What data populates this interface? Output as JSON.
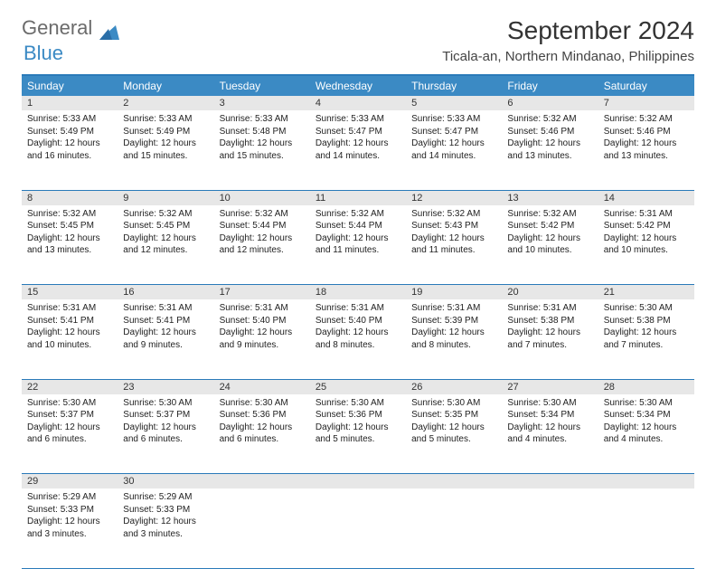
{
  "brand": {
    "part1": "General",
    "part2": "Blue"
  },
  "title": "September 2024",
  "location": "Ticala-an, Northern Mindanao, Philippines",
  "theme": {
    "header_bg": "#3b8ac4",
    "header_text": "#ffffff",
    "border_color": "#2a7ab9",
    "daynum_bg": "#e7e7e7",
    "body_text": "#222222",
    "page_bg": "#ffffff"
  },
  "day_headers": [
    "Sunday",
    "Monday",
    "Tuesday",
    "Wednesday",
    "Thursday",
    "Friday",
    "Saturday"
  ],
  "weeks": [
    {
      "nums": [
        "1",
        "2",
        "3",
        "4",
        "5",
        "6",
        "7"
      ],
      "cells": [
        {
          "sunrise": "Sunrise: 5:33 AM",
          "sunset": "Sunset: 5:49 PM",
          "daylight": "Daylight: 12 hours and 16 minutes."
        },
        {
          "sunrise": "Sunrise: 5:33 AM",
          "sunset": "Sunset: 5:49 PM",
          "daylight": "Daylight: 12 hours and 15 minutes."
        },
        {
          "sunrise": "Sunrise: 5:33 AM",
          "sunset": "Sunset: 5:48 PM",
          "daylight": "Daylight: 12 hours and 15 minutes."
        },
        {
          "sunrise": "Sunrise: 5:33 AM",
          "sunset": "Sunset: 5:47 PM",
          "daylight": "Daylight: 12 hours and 14 minutes."
        },
        {
          "sunrise": "Sunrise: 5:33 AM",
          "sunset": "Sunset: 5:47 PM",
          "daylight": "Daylight: 12 hours and 14 minutes."
        },
        {
          "sunrise": "Sunrise: 5:32 AM",
          "sunset": "Sunset: 5:46 PM",
          "daylight": "Daylight: 12 hours and 13 minutes."
        },
        {
          "sunrise": "Sunrise: 5:32 AM",
          "sunset": "Sunset: 5:46 PM",
          "daylight": "Daylight: 12 hours and 13 minutes."
        }
      ]
    },
    {
      "nums": [
        "8",
        "9",
        "10",
        "11",
        "12",
        "13",
        "14"
      ],
      "cells": [
        {
          "sunrise": "Sunrise: 5:32 AM",
          "sunset": "Sunset: 5:45 PM",
          "daylight": "Daylight: 12 hours and 13 minutes."
        },
        {
          "sunrise": "Sunrise: 5:32 AM",
          "sunset": "Sunset: 5:45 PM",
          "daylight": "Daylight: 12 hours and 12 minutes."
        },
        {
          "sunrise": "Sunrise: 5:32 AM",
          "sunset": "Sunset: 5:44 PM",
          "daylight": "Daylight: 12 hours and 12 minutes."
        },
        {
          "sunrise": "Sunrise: 5:32 AM",
          "sunset": "Sunset: 5:44 PM",
          "daylight": "Daylight: 12 hours and 11 minutes."
        },
        {
          "sunrise": "Sunrise: 5:32 AM",
          "sunset": "Sunset: 5:43 PM",
          "daylight": "Daylight: 12 hours and 11 minutes."
        },
        {
          "sunrise": "Sunrise: 5:32 AM",
          "sunset": "Sunset: 5:42 PM",
          "daylight": "Daylight: 12 hours and 10 minutes."
        },
        {
          "sunrise": "Sunrise: 5:31 AM",
          "sunset": "Sunset: 5:42 PM",
          "daylight": "Daylight: 12 hours and 10 minutes."
        }
      ]
    },
    {
      "nums": [
        "15",
        "16",
        "17",
        "18",
        "19",
        "20",
        "21"
      ],
      "cells": [
        {
          "sunrise": "Sunrise: 5:31 AM",
          "sunset": "Sunset: 5:41 PM",
          "daylight": "Daylight: 12 hours and 10 minutes."
        },
        {
          "sunrise": "Sunrise: 5:31 AM",
          "sunset": "Sunset: 5:41 PM",
          "daylight": "Daylight: 12 hours and 9 minutes."
        },
        {
          "sunrise": "Sunrise: 5:31 AM",
          "sunset": "Sunset: 5:40 PM",
          "daylight": "Daylight: 12 hours and 9 minutes."
        },
        {
          "sunrise": "Sunrise: 5:31 AM",
          "sunset": "Sunset: 5:40 PM",
          "daylight": "Daylight: 12 hours and 8 minutes."
        },
        {
          "sunrise": "Sunrise: 5:31 AM",
          "sunset": "Sunset: 5:39 PM",
          "daylight": "Daylight: 12 hours and 8 minutes."
        },
        {
          "sunrise": "Sunrise: 5:31 AM",
          "sunset": "Sunset: 5:38 PM",
          "daylight": "Daylight: 12 hours and 7 minutes."
        },
        {
          "sunrise": "Sunrise: 5:30 AM",
          "sunset": "Sunset: 5:38 PM",
          "daylight": "Daylight: 12 hours and 7 minutes."
        }
      ]
    },
    {
      "nums": [
        "22",
        "23",
        "24",
        "25",
        "26",
        "27",
        "28"
      ],
      "cells": [
        {
          "sunrise": "Sunrise: 5:30 AM",
          "sunset": "Sunset: 5:37 PM",
          "daylight": "Daylight: 12 hours and 6 minutes."
        },
        {
          "sunrise": "Sunrise: 5:30 AM",
          "sunset": "Sunset: 5:37 PM",
          "daylight": "Daylight: 12 hours and 6 minutes."
        },
        {
          "sunrise": "Sunrise: 5:30 AM",
          "sunset": "Sunset: 5:36 PM",
          "daylight": "Daylight: 12 hours and 6 minutes."
        },
        {
          "sunrise": "Sunrise: 5:30 AM",
          "sunset": "Sunset: 5:36 PM",
          "daylight": "Daylight: 12 hours and 5 minutes."
        },
        {
          "sunrise": "Sunrise: 5:30 AM",
          "sunset": "Sunset: 5:35 PM",
          "daylight": "Daylight: 12 hours and 5 minutes."
        },
        {
          "sunrise": "Sunrise: 5:30 AM",
          "sunset": "Sunset: 5:34 PM",
          "daylight": "Daylight: 12 hours and 4 minutes."
        },
        {
          "sunrise": "Sunrise: 5:30 AM",
          "sunset": "Sunset: 5:34 PM",
          "daylight": "Daylight: 12 hours and 4 minutes."
        }
      ]
    },
    {
      "nums": [
        "29",
        "30",
        "",
        "",
        "",
        "",
        ""
      ],
      "cells": [
        {
          "sunrise": "Sunrise: 5:29 AM",
          "sunset": "Sunset: 5:33 PM",
          "daylight": "Daylight: 12 hours and 3 minutes."
        },
        {
          "sunrise": "Sunrise: 5:29 AM",
          "sunset": "Sunset: 5:33 PM",
          "daylight": "Daylight: 12 hours and 3 minutes."
        },
        {
          "sunrise": "",
          "sunset": "",
          "daylight": ""
        },
        {
          "sunrise": "",
          "sunset": "",
          "daylight": ""
        },
        {
          "sunrise": "",
          "sunset": "",
          "daylight": ""
        },
        {
          "sunrise": "",
          "sunset": "",
          "daylight": ""
        },
        {
          "sunrise": "",
          "sunset": "",
          "daylight": ""
        }
      ]
    }
  ]
}
